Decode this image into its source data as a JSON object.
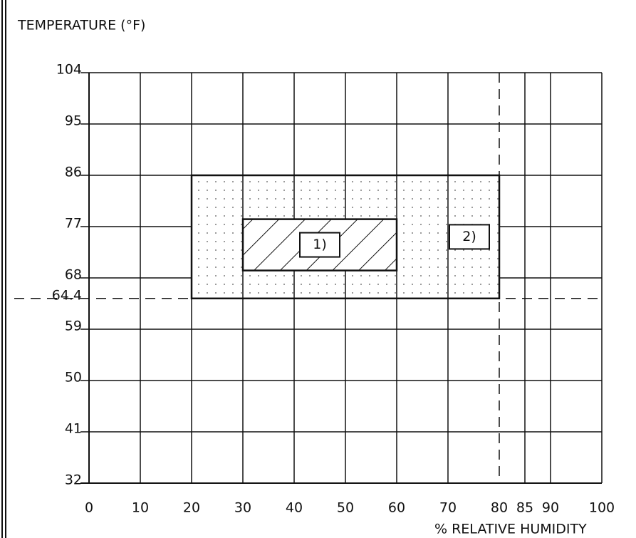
{
  "chart_data": {
    "type": "region",
    "title": "TEMPERATURE (°F)",
    "x_label": "% RELATIVE HUMIDITY",
    "xlim": [
      0,
      100
    ],
    "xticks": [
      0,
      10,
      20,
      30,
      40,
      50,
      60,
      70,
      80,
      85,
      90,
      100
    ],
    "ylim": [
      32,
      104
    ],
    "yticks": [
      32,
      41,
      50,
      59,
      64.4,
      68,
      77,
      86,
      95,
      104
    ],
    "grid": true,
    "reference_lines": {
      "x": [
        80
      ],
      "y": [
        64.4
      ]
    },
    "regions": [
      {
        "label": "2)",
        "x": [
          20,
          80
        ],
        "y": [
          64.4,
          86
        ],
        "fill": "dots"
      },
      {
        "label": "1)",
        "x": [
          30,
          60
        ],
        "y": [
          69.3,
          78.3
        ],
        "fill": "hatch"
      }
    ]
  }
}
